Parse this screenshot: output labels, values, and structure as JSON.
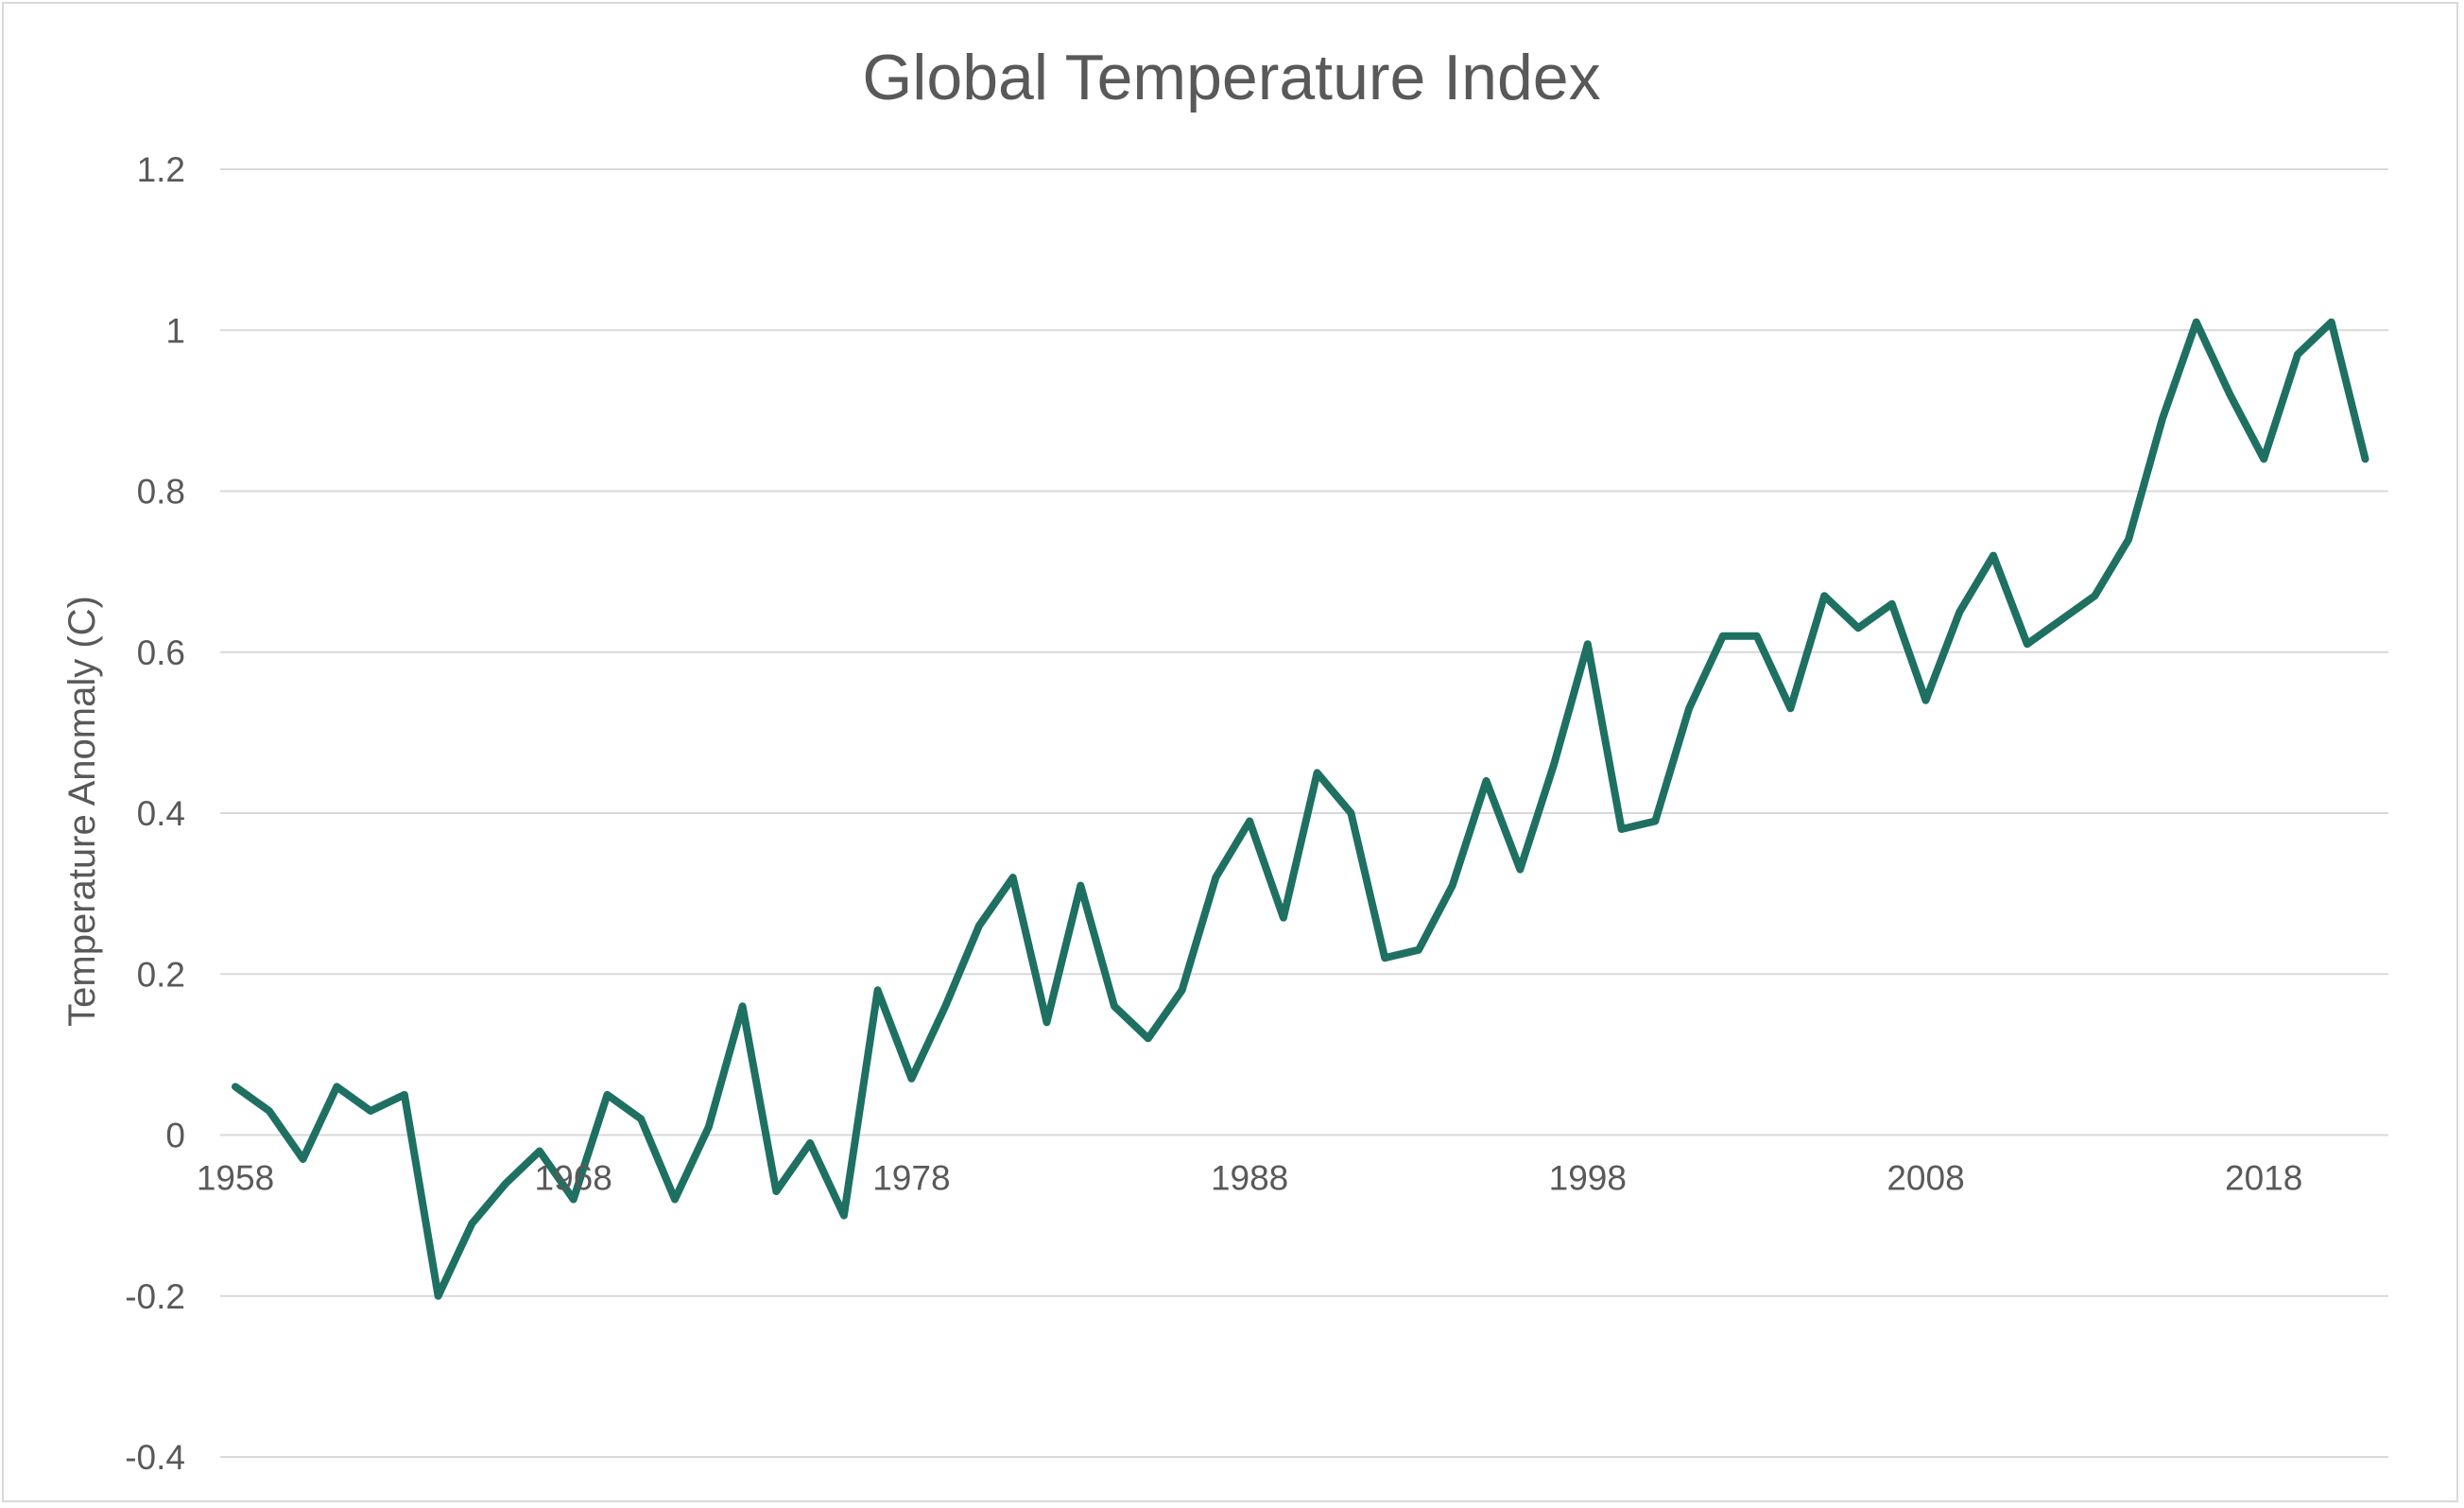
{
  "chart_data": {
    "type": "line",
    "title": "Global Temperature Index",
    "xlabel": "",
    "ylabel": "Temperature Anomaly (C)",
    "ylim": [
      -0.4,
      1.2
    ],
    "yticks": [
      -0.4,
      -0.2,
      0,
      0.2,
      0.4,
      0.6,
      0.8,
      1,
      1.2
    ],
    "ytick_labels": [
      "-0.4",
      "-0.2",
      "0",
      "0.2",
      "0.4",
      "0.6",
      "0.8",
      "1",
      "1.2"
    ],
    "xlim": [
      1958,
      2021
    ],
    "xticks": [
      1958,
      1968,
      1978,
      1988,
      1998,
      2008,
      2018
    ],
    "xtick_labels": [
      "1958",
      "1968",
      "1978",
      "1988",
      "1998",
      "2008",
      "2018"
    ],
    "grid": true,
    "legend": "none",
    "colors": {
      "line": "#1e7062",
      "grid": "#d9d9d9",
      "text": "#595959"
    },
    "x": [
      1958,
      1959,
      1960,
      1961,
      1962,
      1963,
      1964,
      1965,
      1966,
      1967,
      1968,
      1969,
      1970,
      1971,
      1972,
      1973,
      1974,
      1975,
      1976,
      1977,
      1978,
      1979,
      1980,
      1981,
      1982,
      1983,
      1984,
      1985,
      1986,
      1987,
      1988,
      1989,
      1990,
      1991,
      1992,
      1993,
      1994,
      1995,
      1996,
      1997,
      1998,
      1999,
      2000,
      2001,
      2002,
      2003,
      2004,
      2005,
      2006,
      2007,
      2008,
      2009,
      2010,
      2011,
      2012,
      2013,
      2014,
      2015,
      2016,
      2017,
      2018,
      2019,
      2020,
      2021
    ],
    "values": [
      0.06,
      0.03,
      -0.03,
      0.06,
      0.03,
      0.05,
      -0.2,
      -0.11,
      -0.06,
      -0.02,
      -0.08,
      0.05,
      0.02,
      -0.08,
      0.01,
      0.16,
      -0.07,
      -0.01,
      -0.1,
      0.18,
      0.07,
      0.16,
      0.26,
      0.32,
      0.14,
      0.31,
      0.16,
      0.12,
      0.18,
      0.32,
      0.39,
      0.27,
      0.45,
      0.4,
      0.22,
      0.23,
      0.31,
      0.44,
      0.33,
      0.46,
      0.61,
      0.38,
      0.39,
      0.53,
      0.62,
      0.62,
      0.53,
      0.67,
      0.63,
      0.66,
      0.54,
      0.65,
      0.72,
      0.61,
      0.64,
      0.67,
      0.74,
      0.89,
      1.01,
      0.92,
      0.84,
      0.97,
      1.01,
      0.84
    ]
  }
}
